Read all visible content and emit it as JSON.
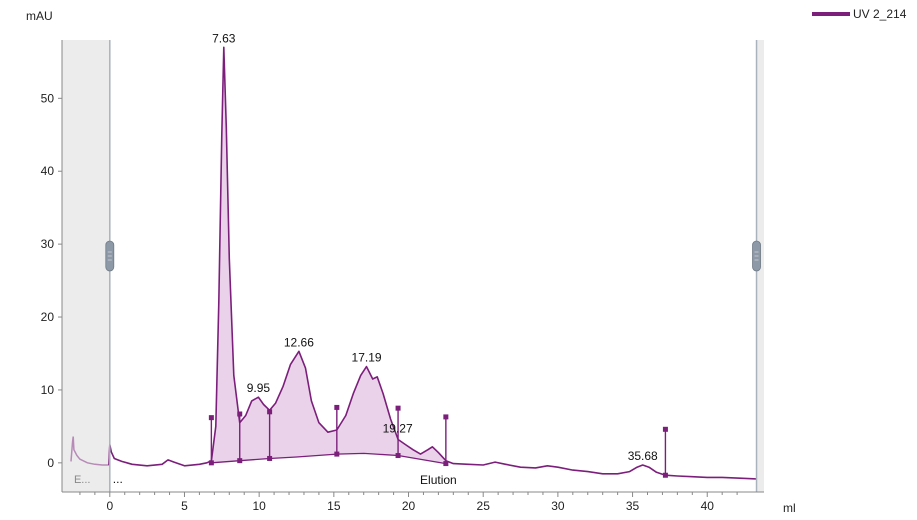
{
  "chart_data": {
    "type": "line",
    "ylabel": "mAU",
    "xlabel": "ml",
    "xlim": [
      -3.2,
      43.8
    ],
    "ylim": [
      -4,
      58
    ],
    "x_ticks": [
      0,
      5,
      10,
      15,
      20,
      25,
      30,
      35,
      40
    ],
    "y_ticks": [
      0,
      10,
      20,
      30,
      40,
      50
    ],
    "grid": false,
    "legend": {
      "position": "top-right",
      "entries": [
        "UV 2_214"
      ]
    },
    "series": [
      {
        "name": "UV 2_214",
        "color": "#7b1f7b",
        "points": [
          [
            -2.6,
            0.2
          ],
          [
            -2.5,
            2.8
          ],
          [
            -2.45,
            3.6
          ],
          [
            -2.4,
            1.8
          ],
          [
            -2.2,
            1.0
          ],
          [
            -2.0,
            0.5
          ],
          [
            -1.5,
            0.0
          ],
          [
            -1.0,
            -0.2
          ],
          [
            -0.5,
            -0.3
          ],
          [
            -0.05,
            -0.3
          ],
          [
            0.0,
            2.5
          ],
          [
            0.1,
            1.5
          ],
          [
            0.3,
            0.6
          ],
          [
            0.8,
            0.2
          ],
          [
            1.5,
            -0.2
          ],
          [
            2.5,
            -0.4
          ],
          [
            3.5,
            -0.2
          ],
          [
            3.9,
            0.4
          ],
          [
            4.3,
            0.1
          ],
          [
            5.0,
            -0.4
          ],
          [
            6.0,
            -0.2
          ],
          [
            6.5,
            0.0
          ],
          [
            6.8,
            0.3
          ],
          [
            7.1,
            5.0
          ],
          [
            7.3,
            22.0
          ],
          [
            7.5,
            45.0
          ],
          [
            7.63,
            57.0
          ],
          [
            7.8,
            46.0
          ],
          [
            8.0,
            28.0
          ],
          [
            8.3,
            12.0
          ],
          [
            8.7,
            5.5
          ],
          [
            9.1,
            6.5
          ],
          [
            9.5,
            8.5
          ],
          [
            9.95,
            9.0
          ],
          [
            10.3,
            8.0
          ],
          [
            10.7,
            7.2
          ],
          [
            11.1,
            8.2
          ],
          [
            11.6,
            10.5
          ],
          [
            12.1,
            13.5
          ],
          [
            12.66,
            15.3
          ],
          [
            13.1,
            13.0
          ],
          [
            13.5,
            8.5
          ],
          [
            14.0,
            5.5
          ],
          [
            14.6,
            4.2
          ],
          [
            15.2,
            4.5
          ],
          [
            15.8,
            6.5
          ],
          [
            16.3,
            9.5
          ],
          [
            16.8,
            12.0
          ],
          [
            17.19,
            13.2
          ],
          [
            17.6,
            11.5
          ],
          [
            17.9,
            11.8
          ],
          [
            18.3,
            9.5
          ],
          [
            18.8,
            6.0
          ],
          [
            19.3,
            3.2
          ],
          [
            19.8,
            2.5
          ],
          [
            20.3,
            1.8
          ],
          [
            20.8,
            1.2
          ],
          [
            21.3,
            1.8
          ],
          [
            21.6,
            2.2
          ],
          [
            22.0,
            1.4
          ],
          [
            22.5,
            0.3
          ],
          [
            23.0,
            -0.1
          ],
          [
            24.0,
            -0.2
          ],
          [
            25.0,
            -0.3
          ],
          [
            25.8,
            0.1
          ],
          [
            26.5,
            -0.2
          ],
          [
            27.5,
            -0.6
          ],
          [
            28.5,
            -0.7
          ],
          [
            29.3,
            -0.4
          ],
          [
            30.0,
            -0.6
          ],
          [
            31.0,
            -1.0
          ],
          [
            32.0,
            -1.2
          ],
          [
            33.0,
            -1.5
          ],
          [
            34.0,
            -1.5
          ],
          [
            34.8,
            -1.2
          ],
          [
            35.3,
            -0.6
          ],
          [
            35.68,
            -0.3
          ],
          [
            36.1,
            -0.6
          ],
          [
            36.6,
            -1.3
          ],
          [
            37.2,
            -1.7
          ],
          [
            38.0,
            -1.8
          ],
          [
            39.0,
            -1.9
          ],
          [
            40.0,
            -2.0
          ],
          [
            41.0,
            -2.0
          ],
          [
            42.0,
            -2.1
          ],
          [
            43.3,
            -2.2
          ]
        ]
      }
    ],
    "baseline": [
      [
        6.8,
        0.0
      ],
      [
        8.7,
        0.3
      ],
      [
        10.7,
        0.6
      ],
      [
        12.5,
        0.8
      ],
      [
        15.2,
        1.2
      ],
      [
        17.0,
        1.3
      ],
      [
        19.3,
        1.0
      ],
      [
        22.5,
        -0.1
      ]
    ],
    "integrated_peaks": [
      {
        "start": 6.8,
        "end": 8.7,
        "label": "7.63",
        "apex": 7.63
      },
      {
        "start": 8.7,
        "end": 10.7,
        "label": "9.95",
        "apex": 9.95
      },
      {
        "start": 10.7,
        "end": 15.2,
        "label": "12.66",
        "apex": 12.66
      },
      {
        "start": 15.2,
        "end": 19.3,
        "label": "17.19",
        "apex": 17.19
      },
      {
        "start": 19.3,
        "end": 22.5,
        "label": "19.27",
        "apex": 19.27
      }
    ],
    "peak_markers": [
      {
        "x": 6.8,
        "top": 6.2,
        "base": 0.0
      },
      {
        "x": 8.7,
        "top": 6.7,
        "base": 0.3
      },
      {
        "x": 10.7,
        "top": 7.0,
        "base": 0.6
      },
      {
        "x": 15.2,
        "top": 7.6,
        "base": 1.2
      },
      {
        "x": 19.3,
        "top": 7.5,
        "base": 1.0
      },
      {
        "x": 22.5,
        "top": 6.3,
        "base": -0.1
      },
      {
        "x": 37.2,
        "top": 4.6,
        "base": -1.7
      }
    ],
    "peak_labels": [
      {
        "text": "7.63",
        "x": 7.63,
        "y": 57.0
      },
      {
        "text": "9.95",
        "x": 9.95,
        "y": 9.0
      },
      {
        "text": "12.66",
        "x": 12.66,
        "y": 15.3
      },
      {
        "text": "17.19",
        "x": 17.19,
        "y": 13.2
      },
      {
        "text": "19.27",
        "x": 19.27,
        "y": 3.5
      },
      {
        "text": "35.68",
        "x": 35.68,
        "y": -0.3
      }
    ],
    "phase_regions": [
      {
        "label": "E...",
        "start": -3.2,
        "end": 0.0
      },
      {
        "label": "...",
        "start": 0.0,
        "end": 0.8
      },
      {
        "label": "Elution",
        "start": 0.0,
        "end": 43.3
      }
    ],
    "phase_markers": [
      0.0,
      43.3
    ]
  }
}
